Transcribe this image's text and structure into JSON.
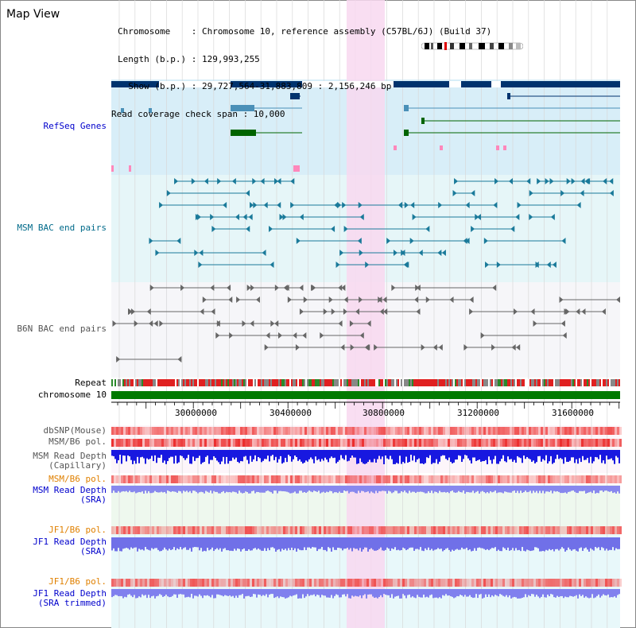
{
  "window": {
    "title": "Map View"
  },
  "info": {
    "chromosome": "Chromosome    : Chromosome 10, reference assembly (C57BL/6J) (Build 37)",
    "length": "Length (b.p.) : 129,993,255",
    "show": "  Show (b.p.) : 29,727,564-31,883,809 : 2,156,246 bp",
    "coverage": "Read coverage check span : 10,000"
  },
  "tracks": {
    "refseq": {
      "label": "RefSeq Genes",
      "color": "#0000cc"
    },
    "msm_bac": {
      "label": "MSM BAC end pairs",
      "color": "#006a8a"
    },
    "b6n_bac": {
      "label": "B6N BAC end pairs",
      "color": "#555555"
    },
    "repeat": {
      "label": "Repeat"
    },
    "chromosome": {
      "label": "chromosome 10"
    },
    "dbsnp": {
      "label": "dbSNP(Mouse)"
    },
    "msm_b6_pol": {
      "label": "MSM/B6 pol."
    },
    "msm_depth_cap": {
      "label": "MSM Read Depth\n(Capillary)"
    },
    "msm_b6_pol_sra": {
      "label": "MSM/B6 pol.",
      "color": "#e08000"
    },
    "msm_depth_sra": {
      "label": "MSM Read Depth\n(SRA)",
      "color": "#0000cc"
    },
    "jf1_b6_pol": {
      "label": "JF1/B6 pol.",
      "color": "#e08000"
    },
    "jf1_depth_sra": {
      "label": "JF1 Read Depth\n(SRA)",
      "color": "#0000cc"
    },
    "jf1_b6_pol_trim": {
      "label": "JF1/B6 pol.",
      "color": "#e08000"
    },
    "jf1_depth_trim": {
      "label": "JF1 Read Depth\n(SRA trimmed)",
      "color": "#0000cc"
    }
  },
  "axis": {
    "ticks": [
      "30000000",
      "30400000",
      "30800000",
      "31200000",
      "31600000"
    ]
  },
  "colors": {
    "highlight": "#f8d8f0",
    "refseq_bg": "#d8eef8",
    "bac_bg": "#e6f6f8",
    "gene_dark": "#00336e",
    "gene_green": "#006400",
    "chrom_green": "#007a00"
  }
}
